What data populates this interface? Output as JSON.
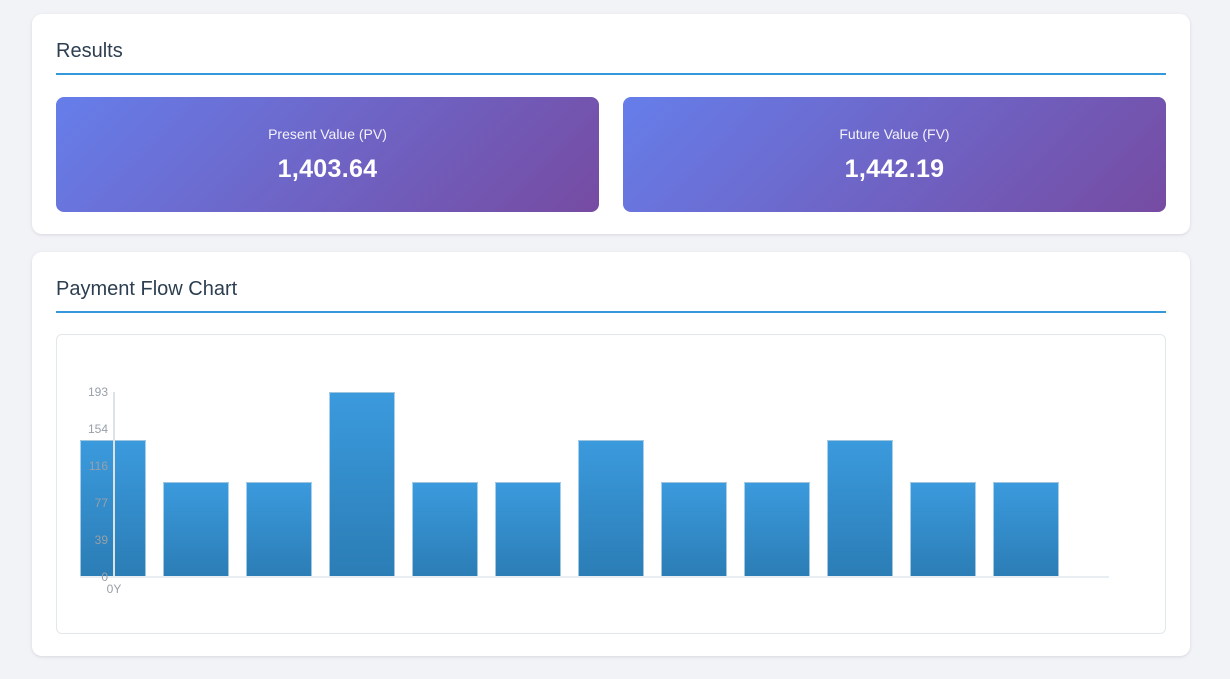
{
  "theme": {
    "background": "#f2f3f7",
    "accent": "#3498db",
    "card_background": "#ffffff",
    "title_color": "#2c3e50"
  },
  "results_card": {
    "title": "Results",
    "gradient": {
      "from": "#667eea",
      "to": "#764ba2"
    },
    "items": [
      {
        "label": "Present Value (PV)",
        "value": "1,403.64"
      },
      {
        "label": "Future Value (FV)",
        "value": "1,442.19"
      }
    ]
  },
  "chart_card": {
    "title": "Payment Flow Chart"
  },
  "chart_data": {
    "type": "bar",
    "title": "Payment Flow Chart",
    "x": [
      0,
      1,
      2,
      3,
      4,
      5,
      6,
      7,
      8,
      9,
      10,
      11
    ],
    "values": [
      143,
      99,
      99,
      193,
      99,
      99,
      143,
      99,
      99,
      143,
      99,
      99
    ],
    "ylim": [
      0,
      193
    ],
    "y_ticks": [
      0,
      39,
      77,
      116,
      154,
      193
    ],
    "x_tick_labels": [
      "0Y"
    ],
    "xlabel": "",
    "ylabel": "",
    "grid": false,
    "legend": false,
    "bar_color_top": "#3b9add",
    "bar_color_bottom": "#2b7db5",
    "axis_color": "#dce2e8",
    "tick_label_color": "#98a0a8"
  }
}
